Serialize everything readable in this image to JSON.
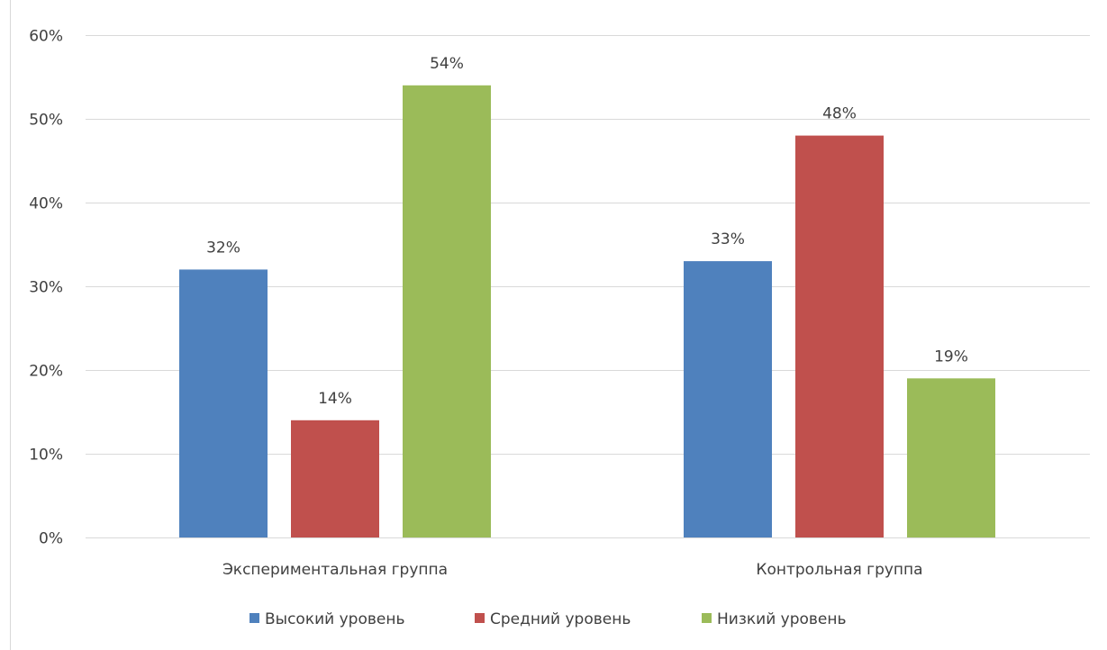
{
  "chart_data": {
    "type": "bar",
    "title": "",
    "xlabel": "",
    "ylabel": "",
    "categories": [
      "Экспериментальная группа",
      "Контрольная группа"
    ],
    "series": [
      {
        "name": "Высокий уровень",
        "color": "#4f81bd",
        "values": [
          32,
          33
        ],
        "labels": [
          "32%",
          "33%"
        ]
      },
      {
        "name": "Средний уровень",
        "color": "#c0504d",
        "values": [
          14,
          48
        ],
        "labels": [
          "14%",
          "48%"
        ]
      },
      {
        "name": "Низкий уровень",
        "color": "#9bbb59",
        "values": [
          54,
          19
        ],
        "labels": [
          "54%",
          "19%"
        ]
      }
    ],
    "ylim": [
      0,
      60
    ],
    "yticks": [
      0,
      10,
      20,
      30,
      40,
      50,
      60
    ],
    "ytick_labels": [
      "0%",
      "10%",
      "20%",
      "30%",
      "40%",
      "50%",
      "60%"
    ],
    "grid": true,
    "legend_position": "bottom",
    "gridline_color": "#d9d9d9",
    "text_color": "#404040"
  }
}
